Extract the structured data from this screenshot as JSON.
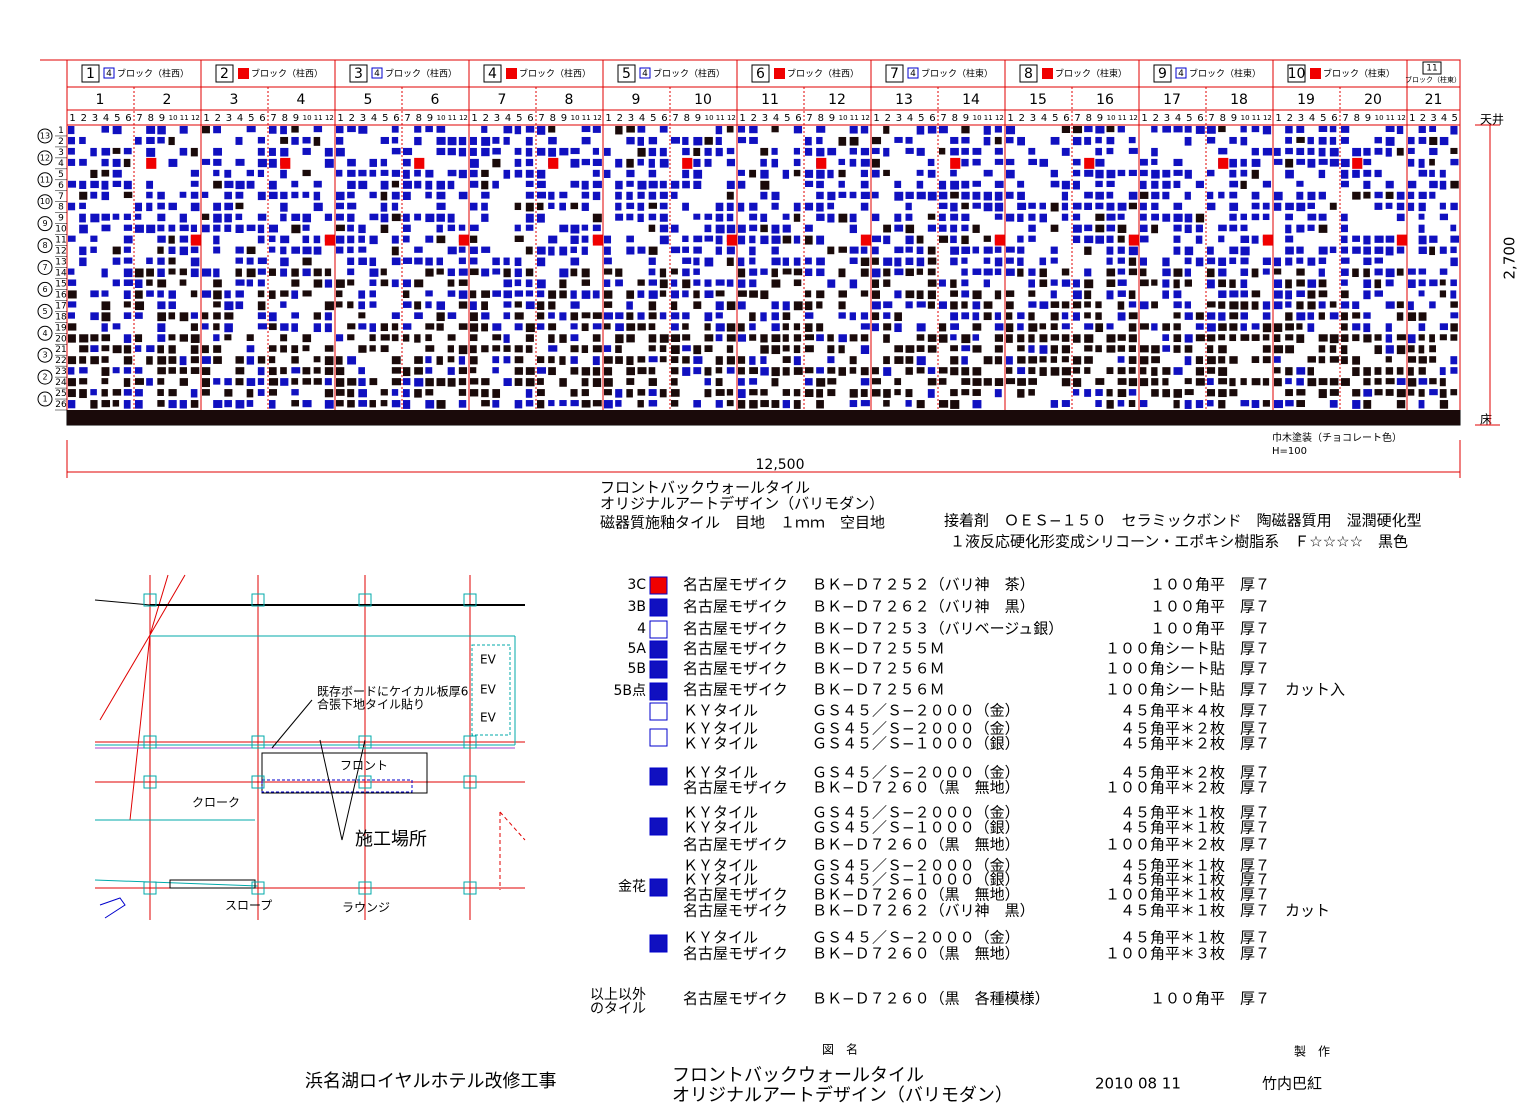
{
  "header_blocks": [
    {
      "number": "1",
      "icon": "4",
      "label": "ブロック（柱西）"
    },
    {
      "number": "2",
      "label": "ブロック（柱西）"
    },
    {
      "number": "3",
      "icon": "4",
      "label": "ブロック（柱西）",
      "label_color": "#e00000"
    },
    {
      "number": "4",
      "label": "ブロック（柱西）"
    },
    {
      "number": "5",
      "icon": "4",
      "label": "ブロック（柱西）"
    },
    {
      "number": "6",
      "label": "ブロック（柱西）"
    },
    {
      "number": "7",
      "icon": "4",
      "label": "ブロック（柱東）"
    },
    {
      "number": "8",
      "label": "ブロック（柱東）"
    },
    {
      "number": "9",
      "icon": "4",
      "label": "ブロック（柱東）"
    },
    {
      "number": "10",
      "label": "ブロック（柱東）"
    },
    {
      "number": "11",
      "label": "ブロック（柱東）"
    }
  ],
  "columns": [
    "1",
    "2",
    "3",
    "4",
    "5",
    "6",
    "7",
    "8",
    "9",
    "10",
    "11",
    "12",
    "13",
    "14",
    "15",
    "16",
    "17",
    "18",
    "19",
    "20",
    "21"
  ],
  "sub_numbers": [
    "1",
    "2",
    "3",
    "4",
    "5",
    "6",
    "7",
    "8",
    "9",
    "10",
    "11",
    "12"
  ],
  "row_groups": [
    "13",
    "12",
    "11",
    "10",
    "9",
    "8",
    "7",
    "6",
    "5",
    "4",
    "3",
    "2",
    "1"
  ],
  "rows": [
    "1",
    "2",
    "3",
    "4",
    "5",
    "6",
    "7",
    "8",
    "9",
    "10",
    "11",
    "12",
    "13",
    "14",
    "15",
    "16",
    "17",
    "18",
    "19",
    "20",
    "21",
    "22",
    "23",
    "24",
    "25",
    "26"
  ],
  "highlight_rows": [
    "5",
    "10",
    "15",
    "20",
    "25"
  ],
  "dimensions": {
    "ceiling": "天井",
    "floor": "床",
    "height": "2,700",
    "width": "12,500",
    "skirting": "巾木塗装（チョコレート色）",
    "skirting_height": "H=100"
  },
  "notes": [
    "フロントバックウォールタイル",
    "オリジナルアートデザイン（バリモダン）",
    "磁器質施釉タイル　目地　１ｍｍ　空目地",
    "接着剤　ＯＥＳ−１５０　セラミックボンド　陶磁器質用　湿潤硬化型",
    "１液反応硬化形変成シリコーン・エポキシ樹脂系　Ｆ☆☆☆☆　黒色"
  ],
  "legend_codes": [
    {
      "text": "3C",
      "color": "#000"
    },
    {
      "text": "3B",
      "color": "#000"
    },
    {
      "text": "4",
      "color": "#000"
    },
    {
      "text": "5A",
      "color": "#000"
    },
    {
      "text": "5B",
      "color": "#e00000"
    },
    {
      "text": "5B点",
      "color": "#e00000"
    },
    {
      "text": "金花",
      "color": "#e00000"
    },
    {
      "text": "以上以外",
      "color": "#e00000"
    },
    {
      "text": "のタイル",
      "color": "#e00000"
    }
  ],
  "legend_rows": [
    [
      "名古屋モザイク",
      "ＢＫ−Ｄ７２５２（バリ神　茶）",
      "１００角平",
      "厚７"
    ],
    [
      "名古屋モザイク",
      "ＢＫ−Ｄ７２６２（バリ神　黒）",
      "１００角平",
      "厚７"
    ],
    [
      "名古屋モザイク",
      "ＢＫ−Ｄ７２５３（バリベージュ銀）",
      "１００角平",
      "厚７"
    ],
    [
      "名古屋モザイク",
      "ＢＫ−Ｄ７２５５Ｍ",
      "１００角シート貼",
      "厚７"
    ],
    [
      "名古屋モザイク",
      "ＢＫ−Ｄ７２５６Ｍ",
      "１００角シート貼",
      "厚７"
    ],
    [
      "名古屋モザイク",
      "ＢＫ−Ｄ７２５６Ｍ",
      "１００角シート貼",
      "厚７",
      "カット入"
    ],
    [
      "ＫＹタイル",
      "ＧＳ４５／Ｓ−２０００（金）",
      "４５角平＊４枚",
      "厚７"
    ],
    [
      "ＫＹタイル",
      "ＧＳ４５／Ｓ−２０００（金）",
      "４５角平＊２枚",
      "厚７"
    ],
    [
      "ＫＹタイル",
      "ＧＳ４５／Ｓ−１０００（銀）",
      "４５角平＊２枚",
      "厚７"
    ],
    [
      "ＫＹタイル",
      "ＧＳ４５／Ｓ−２０００（金）",
      "４５角平＊２枚",
      "厚７"
    ],
    [
      "名古屋モザイク",
      "ＢＫ−Ｄ７２６０（黒　無地）",
      "１００角平＊２枚",
      "厚７"
    ],
    [
      "ＫＹタイル",
      "ＧＳ４５／Ｓ−２０００（金）",
      "４５角平＊１枚",
      "厚７"
    ],
    [
      "ＫＹタイル",
      "ＧＳ４５／Ｓ−１０００（銀）",
      "４５角平＊１枚",
      "厚７"
    ],
    [
      "名古屋モザイク",
      "ＢＫ−Ｄ７２６０（黒　無地）",
      "１００角平＊２枚",
      "厚７"
    ],
    [
      "ＫＹタイル",
      "ＧＳ４５／Ｓ−２０００（金）",
      "４５角平＊１枚",
      "厚７"
    ],
    [
      "ＫＹタイル",
      "ＧＳ４５／Ｓ−１０００（銀）",
      "４５角平＊１枚",
      "厚７"
    ],
    [
      "名古屋モザイク",
      "ＢＫ−Ｄ７２６０（黒　無地）",
      "１００角平＊１枚",
      "厚７"
    ],
    [
      "名古屋モザイク",
      "ＢＫ−Ｄ７２６２（バリ神　黒）",
      "４５角平＊１枚",
      "厚７",
      "カット"
    ],
    [
      "ＫＹタイル",
      "ＧＳ４５／Ｓ−２０００（金）",
      "４５角平＊１枚",
      "厚７"
    ],
    [
      "名古屋モザイク",
      "ＢＫ−Ｄ７２６０（黒　無地）",
      "１００角平＊３枚",
      "厚７"
    ],
    [
      "名古屋モザイク",
      "ＢＫ−Ｄ７２６０（黒　各種模様）",
      "１００角平",
      "厚７"
    ]
  ],
  "plan_labels": {
    "ev": [
      "EV",
      "EV",
      "EV"
    ],
    "note1": "既存ボードにケイカル板厚6",
    "note2": "合張下地タイル貼り",
    "front": "フロント",
    "cloak": "クローク",
    "site": "施工場所",
    "slope": "スロープ",
    "lounge": "ラウンジ"
  },
  "title_block": {
    "drawing_name_label": "図　名",
    "maker_label": "製　作",
    "project": "浜名湖ロイヤルホテル改修工事",
    "name_line1": "フロントバックウォールタイル",
    "name_line2": "オリジナルアートデザイン（バリモダン）",
    "date": "2010 08 11",
    "author": "竹内巴紅"
  }
}
